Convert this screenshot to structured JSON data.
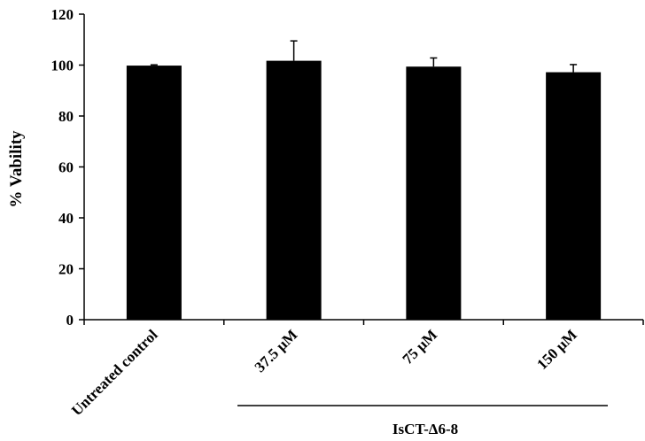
{
  "chart_data": {
    "type": "bar",
    "title": "",
    "xlabel": "",
    "ylabel": "% Vability",
    "categories": [
      "Untreated control",
      "37.5 µM",
      "75 µM",
      "150 µM"
    ],
    "values": [
      99.8,
      101.7,
      99.4,
      97.2
    ],
    "error_upper": [
      0.3,
      7.8,
      3.4,
      3.0
    ],
    "ylim": [
      0,
      120
    ],
    "yticks": [
      "0",
      "20",
      "40",
      "60",
      "80",
      "100",
      "120"
    ],
    "ytick_values": [
      0,
      20,
      40,
      60,
      80,
      100,
      120
    ],
    "group_label": "IsCT-Δ6-8",
    "bar_color": "#000000",
    "grid": false,
    "legend": "none"
  }
}
